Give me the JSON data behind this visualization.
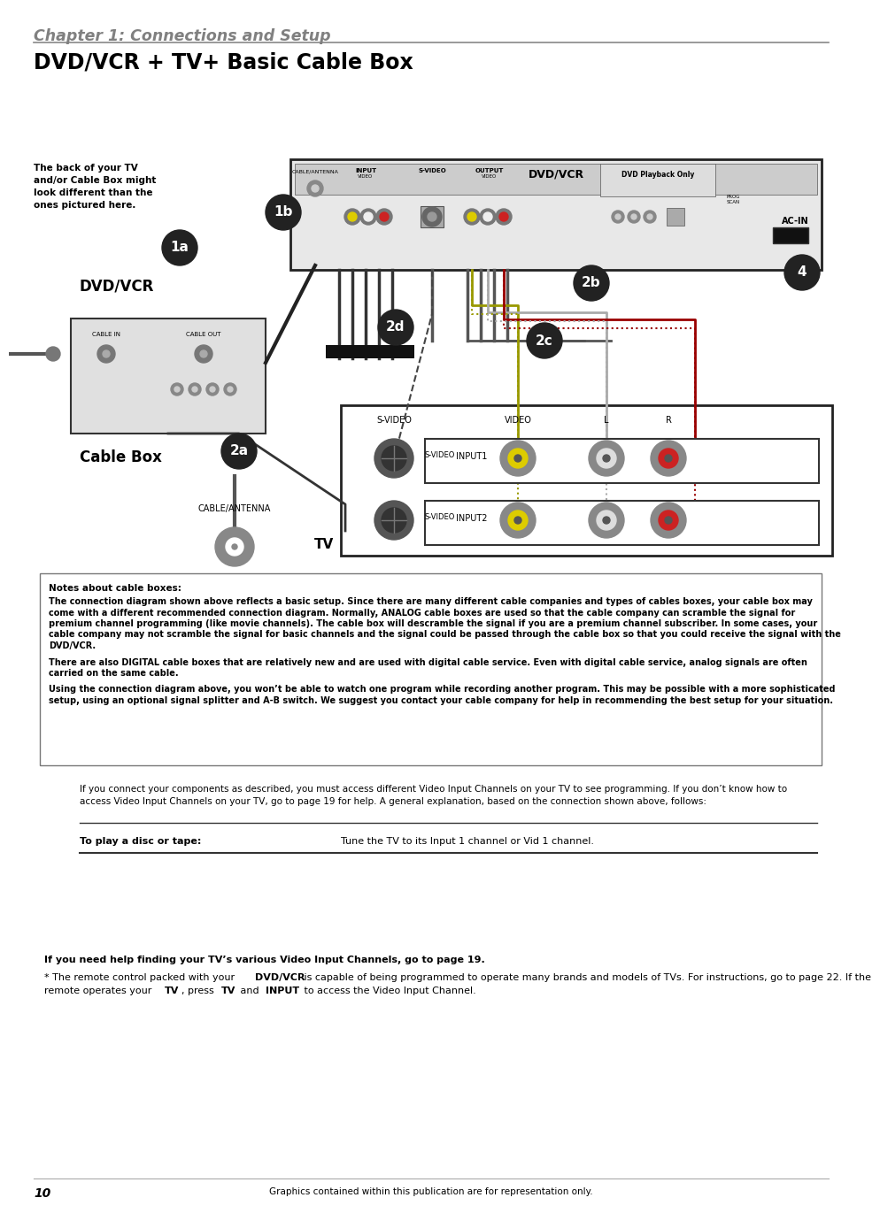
{
  "chapter_title": "Chapter 1: Connections and Setup",
  "page_title": "DVD/VCR + TV+ Basic Cable Box",
  "bg_color": "#ffffff",
  "chapter_color": "#808080",
  "title_color": "#000000",
  "page_number": "10",
  "footer_text": "Graphics contained within this publication are for representation only.",
  "notes_title": "Notes about cable boxes:",
  "notes_line1": "The connection diagram shown above reflects a basic setup. Since there are many different cable companies and types of cables boxes, your cable box may",
  "notes_line2": "come with a different recommended connection diagram. Normally, ANALOG cable boxes are used so that the cable company can scramble the signal for",
  "notes_line3": "premium channel programming (like movie channels). The cable box will descramble the signal if you are a premium channel subscriber. In some cases, your",
  "notes_line4": "cable company may not scramble the signal for basic channels and the signal could be passed through the cable box so that you could receive the signal with the",
  "notes_line5": "DVD/VCR.",
  "notes_line6": "There are also DIGITAL cable boxes that are relatively new and are used with digital cable service. Even with digital cable service, analog signals are often",
  "notes_line7": "carried on the same cable.",
  "notes_line8": "Using the connection diagram above, you won’t be able to watch one program while recording another program. This may be possible with a more sophisticated",
  "notes_line9": "setup, using an optional signal splitter and A-B switch. We suggest you contact your cable company for help in recommending the best setup for your situation.",
  "body_line1": "If you connect your components as described, you must access different Video Input Channels on your TV to see programming. If you don’t know how to",
  "body_line2": "access Video Input Channels on your TV, go to page 19 for help. A general explanation, based on the connection shown above, follows:",
  "table_left": "To play a disc or tape:",
  "table_right": "Tune the TV to its Input 1 channel or Vid 1 channel.",
  "bottom1": "If you need help finding your TV’s various Video Input Channels, go to page 19.",
  "bottom2a": "* The remote control packed with your ",
  "bottom2b": "DVD/VCR",
  "bottom2c": " is capable of being programmed to operate many brands and models of TVs. For instructions, go to page 22. If the",
  "bottom3a": "remote operates your ",
  "bottom3b": "TV",
  "bottom3c": ", press ",
  "bottom3d": "TV",
  "bottom3e": " and ",
  "bottom3f": "INPUT",
  "bottom3g": " to access the Video Input Channel.",
  "diagram_note": "The back of your TV\nand/or Cable Box might\nlook different than the\nones pictured here.",
  "label_dvdvcr": "DVD/VCR",
  "label_cablebox": "Cable Box",
  "label_tv": "TV",
  "label_1a": "1a",
  "label_1b": "1b",
  "label_2a": "2a",
  "label_2b": "2b",
  "label_2c": "2c",
  "label_2d": "2d",
  "label_4": "4",
  "label_svideo": "S-VIDEO",
  "label_video": "VIDEO",
  "label_l": "L",
  "label_r": "R",
  "label_input1": "INPUT1",
  "label_input2": "INPUT2",
  "label_cable_antenna": "CABLE/ANTENNA",
  "label_acin": "AC-IN",
  "label_dvdvcr_device": "DVD/VCR",
  "label_dvd_playback": "DVD Playback Only"
}
